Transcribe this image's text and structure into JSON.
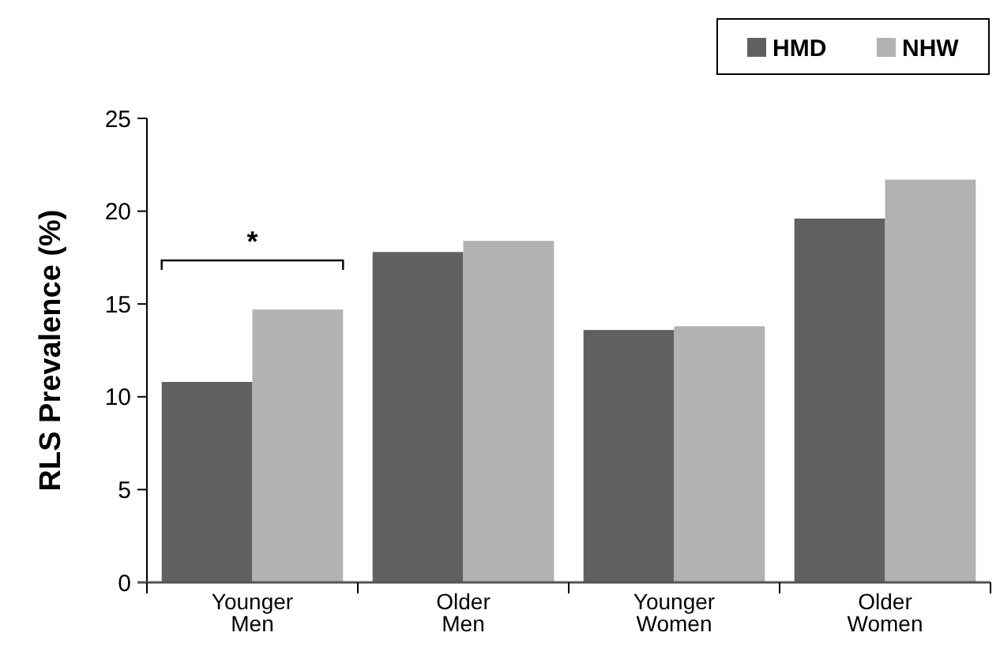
{
  "chart_data": {
    "type": "bar",
    "ylabel": "RLS Prevalence (%)",
    "categories": [
      "Younger Men",
      "Older Men",
      "Younger Women",
      "Older Women"
    ],
    "series": [
      {
        "name": "HMD",
        "color": "#606060",
        "values": [
          10.8,
          17.8,
          13.6,
          19.6
        ]
      },
      {
        "name": "NHW",
        "color": "#b2b2b2",
        "values": [
          14.7,
          18.4,
          13.8,
          21.7
        ]
      }
    ],
    "ylim": [
      0,
      25
    ],
    "yticks": [
      0,
      5,
      10,
      15,
      20,
      25
    ],
    "grid": false,
    "legend": "top right",
    "annotations": [
      "*"
    ]
  }
}
